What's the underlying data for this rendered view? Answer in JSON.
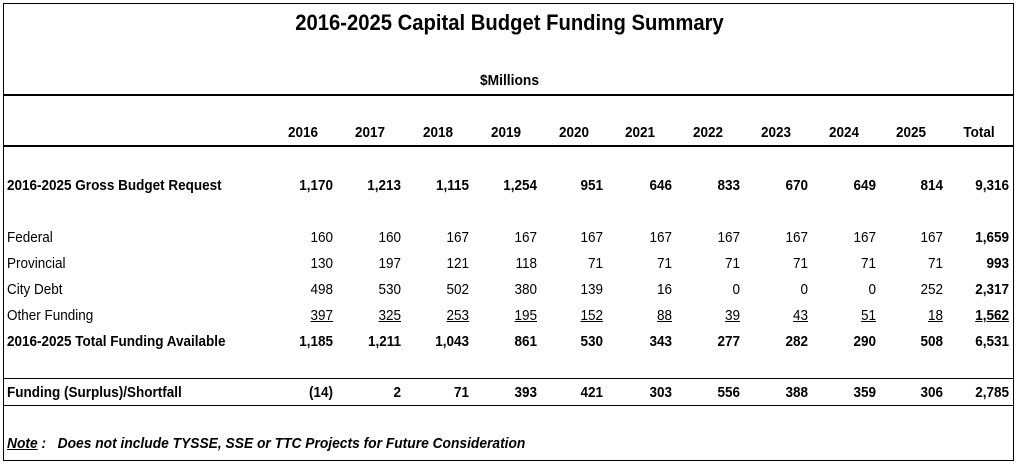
{
  "title": "2016-2025 Capital Budget Funding Summary",
  "subtitle": "$Millions",
  "columns": [
    "2016",
    "2017",
    "2018",
    "2019",
    "2020",
    "2021",
    "2022",
    "2023",
    "2024",
    "2025",
    "Total"
  ],
  "rows": {
    "gross": {
      "label": "2016-2025 Gross Budget Request",
      "values": [
        "1,170",
        "1,213",
        "1,115",
        "1,254",
        "951",
        "646",
        "833",
        "670",
        "649",
        "814",
        "9,316"
      ]
    },
    "federal": {
      "label": "Federal",
      "values": [
        "160",
        "160",
        "167",
        "167",
        "167",
        "167",
        "167",
        "167",
        "167",
        "167",
        "1,659"
      ]
    },
    "provincial": {
      "label": "Provincial",
      "values": [
        "130",
        "197",
        "121",
        "118",
        "71",
        "71",
        "71",
        "71",
        "71",
        "71",
        "993"
      ]
    },
    "city_debt": {
      "label": "City Debt",
      "values": [
        "498",
        "530",
        "502",
        "380",
        "139",
        "16",
        "0",
        "0",
        "0",
        "252",
        "2,317"
      ]
    },
    "other": {
      "label": "Other Funding",
      "values": [
        "397",
        "325",
        "253",
        "195",
        "152",
        "88",
        "39",
        "43",
        "51",
        "18",
        "1,562"
      ]
    },
    "total_available": {
      "label": "2016-2025 Total Funding Available",
      "values": [
        "1,185",
        "1,211",
        "1,043",
        "861",
        "530",
        "343",
        "277",
        "282",
        "290",
        "508",
        "6,531"
      ]
    },
    "shortfall": {
      "label": "Funding (Surplus)/Shortfall",
      "values": [
        "(14)",
        "2",
        "71",
        "393",
        "421",
        "303",
        "556",
        "388",
        "359",
        "306",
        "2,785"
      ]
    }
  },
  "note": {
    "label": "Note",
    "colon": " :",
    "text": "Does not include TYSSE, SSE or TTC Projects for Future Consideration"
  }
}
